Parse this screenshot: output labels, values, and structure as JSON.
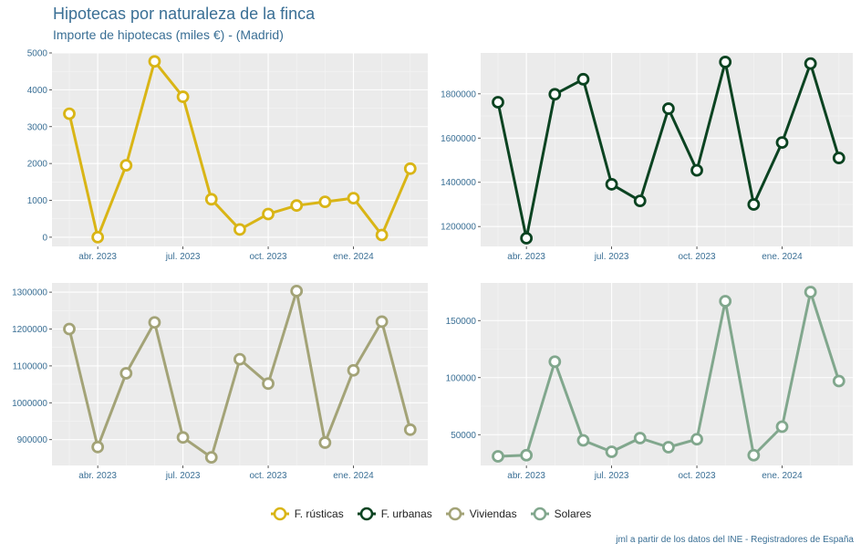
{
  "title": "Hipotecas por naturaleza de la finca",
  "subtitle": "Importe de hipotecas (miles €) - (Madrid)",
  "caption": "jml a partir de los datos del INE - Registradores de España",
  "legend": [
    {
      "label": "F. rústicas",
      "color": "#d9b516"
    },
    {
      "label": "F. urbanas",
      "color": "#0b4321"
    },
    {
      "label": "Viviendas",
      "color": "#a3a377"
    },
    {
      "label": "Solares",
      "color": "#81a78d"
    }
  ],
  "chart_data": [
    {
      "type": "line",
      "series": [
        {
          "name": "F. rústicas",
          "color": "#d9b516",
          "values": [
            3350,
            0,
            1950,
            4770,
            3810,
            1030,
            210,
            630,
            860,
            960,
            1060,
            60,
            1860
          ]
        }
      ],
      "x": [
        "2023-03",
        "2023-04",
        "2023-05",
        "2023-06",
        "2023-07",
        "2023-08",
        "2023-09",
        "2023-10",
        "2023-11",
        "2023-12",
        "2024-01",
        "2024-02",
        "2024-03"
      ],
      "x_ticks": [
        "abr. 2023",
        "jul. 2023",
        "oct. 2023",
        "ene. 2024"
      ],
      "y_ticks": [
        "0",
        "1000",
        "2000",
        "3000",
        "4000",
        "5000"
      ],
      "ylim": [
        -250,
        5000
      ]
    },
    {
      "type": "line",
      "series": [
        {
          "name": "F. urbanas",
          "color": "#0b4321",
          "values": [
            1762000,
            1147000,
            1798000,
            1866000,
            1391000,
            1316000,
            1733000,
            1454000,
            1944000,
            1300000,
            1580000,
            1937000,
            1510000
          ]
        }
      ],
      "x": [
        "2023-03",
        "2023-04",
        "2023-05",
        "2023-06",
        "2023-07",
        "2023-08",
        "2023-09",
        "2023-10",
        "2023-11",
        "2023-12",
        "2024-01",
        "2024-02",
        "2024-03"
      ],
      "x_ticks": [
        "abr. 2023",
        "jul. 2023",
        "oct. 2023",
        "ene. 2024"
      ],
      "y_ticks": [
        "1200000",
        "1400000",
        "1600000",
        "1800000"
      ],
      "ylim": [
        1110000,
        1985000
      ]
    },
    {
      "type": "line",
      "series": [
        {
          "name": "Viviendas",
          "color": "#a3a377",
          "values": [
            1200000,
            880000,
            1080000,
            1218000,
            906000,
            852000,
            1118000,
            1052000,
            1303000,
            892000,
            1088000,
            1220000,
            927000
          ]
        }
      ],
      "x": [
        "2023-03",
        "2023-04",
        "2023-05",
        "2023-06",
        "2023-07",
        "2023-08",
        "2023-09",
        "2023-10",
        "2023-11",
        "2023-12",
        "2024-01",
        "2024-02",
        "2024-03"
      ],
      "x_ticks": [
        "abr. 2023",
        "jul. 2023",
        "oct. 2023",
        "ene. 2024"
      ],
      "y_ticks": [
        "900000",
        "1000000",
        "1100000",
        "1200000",
        "1300000"
      ],
      "ylim": [
        830000,
        1325000
      ]
    },
    {
      "type": "line",
      "series": [
        {
          "name": "Solares",
          "color": "#81a78d",
          "values": [
            31000,
            32000,
            114000,
            45000,
            35000,
            47000,
            39000,
            46000,
            167000,
            32000,
            57000,
            175000,
            97000
          ]
        }
      ],
      "x": [
        "2023-03",
        "2023-04",
        "2023-05",
        "2023-06",
        "2023-07",
        "2023-08",
        "2023-09",
        "2023-10",
        "2023-11",
        "2023-12",
        "2024-01",
        "2024-02",
        "2024-03"
      ],
      "x_ticks": [
        "abr. 2023",
        "jul. 2023",
        "oct. 2023",
        "ene. 2024"
      ],
      "y_ticks": [
        "50000",
        "100000",
        "150000"
      ],
      "ylim": [
        23000,
        183000
      ]
    }
  ]
}
